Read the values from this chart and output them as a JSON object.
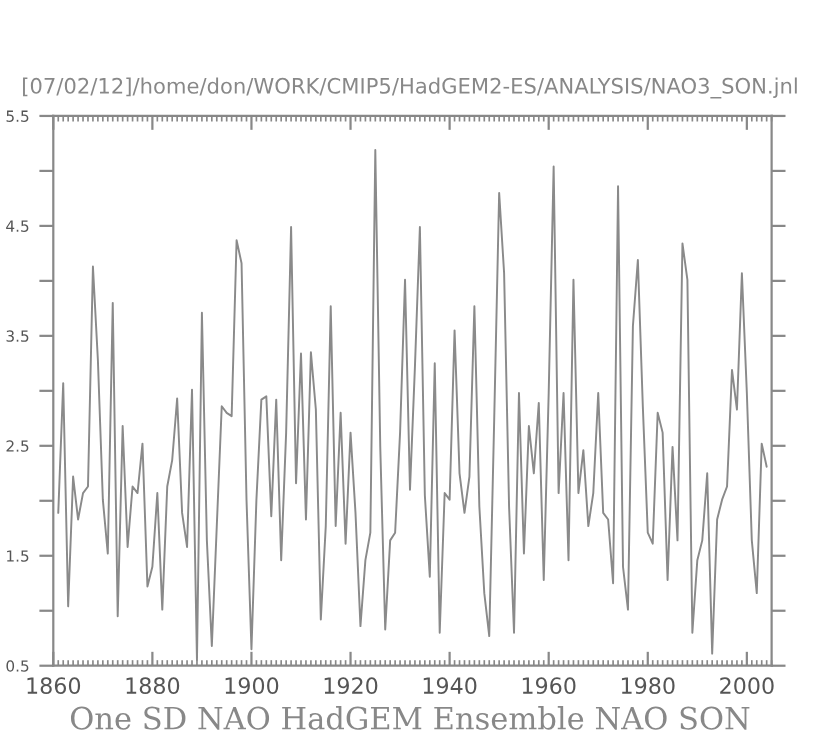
{
  "chart_data": {
    "type": "line",
    "title": "[07/02/12]/home/don/WORK/CMIP5/HadGEM2-ES/ANALYSIS/NAO3_SON.jnl",
    "xlabel": "One SD NAO HadGEM Ensemble NAO SON",
    "x": [
      1861,
      1862,
      1863,
      1864,
      1865,
      1866,
      1867,
      1868,
      1869,
      1870,
      1871,
      1872,
      1873,
      1874,
      1875,
      1876,
      1877,
      1878,
      1879,
      1880,
      1881,
      1882,
      1883,
      1884,
      1885,
      1886,
      1887,
      1888,
      1889,
      1890,
      1891,
      1892,
      1893,
      1894,
      1895,
      1896,
      1897,
      1898,
      1899,
      1900,
      1901,
      1902,
      1903,
      1904,
      1905,
      1906,
      1907,
      1908,
      1909,
      1910,
      1911,
      1912,
      1913,
      1914,
      1915,
      1916,
      1917,
      1918,
      1919,
      1920,
      1921,
      1922,
      1923,
      1924,
      1925,
      1926,
      1927,
      1928,
      1929,
      1930,
      1931,
      1932,
      1933,
      1934,
      1935,
      1936,
      1937,
      1938,
      1939,
      1940,
      1941,
      1942,
      1943,
      1944,
      1945,
      1946,
      1947,
      1948,
      1949,
      1950,
      1951,
      1952,
      1953,
      1954,
      1955,
      1956,
      1957,
      1958,
      1959,
      1960,
      1961,
      1962,
      1963,
      1964,
      1965,
      1966,
      1967,
      1968,
      1969,
      1970,
      1971,
      1972,
      1973,
      1974,
      1975,
      1976,
      1977,
      1978,
      1979,
      1980,
      1981,
      1982,
      1983,
      1984,
      1985,
      1986,
      1987,
      1988,
      1989,
      1990,
      1991,
      1992,
      1993,
      1994,
      1995,
      1996,
      1997,
      1998,
      1999,
      2000,
      2001,
      2002,
      2003,
      2004
    ],
    "series": [
      {
        "color": "#8a8a8a",
        "values": [
          1.89,
          3.07,
          1.04,
          2.22,
          1.83,
          2.07,
          2.13,
          4.13,
          3.28,
          2.01,
          1.52,
          3.8,
          0.95,
          2.68,
          1.58,
          2.13,
          2.07,
          2.52,
          1.22,
          1.4,
          2.07,
          1.01,
          2.13,
          2.37,
          2.93,
          1.89,
          1.58,
          3.01,
          0.55,
          3.71,
          1.64,
          0.68,
          1.77,
          2.86,
          2.8,
          2.77,
          4.37,
          4.16,
          2.01,
          0.65,
          2.01,
          2.92,
          2.95,
          1.86,
          2.92,
          1.46,
          2.62,
          4.49,
          2.16,
          3.34,
          1.83,
          3.35,
          2.83,
          0.92,
          1.77,
          3.77,
          1.77,
          2.8,
          1.61,
          2.62,
          1.89,
          0.86,
          1.46,
          1.71,
          5.19,
          2.49,
          0.83,
          1.64,
          1.71,
          2.62,
          4.01,
          2.1,
          3.22,
          4.49,
          2.05,
          1.31,
          3.25,
          0.8,
          2.07,
          2.01,
          3.55,
          2.25,
          1.89,
          2.22,
          3.77,
          1.95,
          1.16,
          0.77,
          2.74,
          4.8,
          4.07,
          1.95,
          0.8,
          2.98,
          1.52,
          2.68,
          2.25,
          2.89,
          1.28,
          2.98,
          5.04,
          2.07,
          2.98,
          1.46,
          4.01,
          2.07,
          2.46,
          1.77,
          2.07,
          2.98,
          1.89,
          1.83,
          1.25,
          4.86,
          1.4,
          1.01,
          3.59,
          4.19,
          2.86,
          1.71,
          1.61,
          2.8,
          2.62,
          1.28,
          2.49,
          1.64,
          4.34,
          4.01,
          0.8,
          1.46,
          1.64,
          2.25,
          0.61,
          1.83,
          2.01,
          2.13,
          3.19,
          2.83,
          4.07,
          2.98,
          1.64,
          1.16,
          2.52,
          2.31
        ]
      }
    ],
    "xlim": [
      1860,
      2005
    ],
    "xticks": [
      1860,
      1880,
      1900,
      1920,
      1940,
      1960,
      1980,
      2000
    ],
    "ylim": [
      0.5,
      5.5
    ],
    "yticks": [
      0.5,
      {
        "value": 1,
        "label": null
      },
      1.5,
      {
        "value": 2,
        "label": null
      },
      2.5,
      {
        "value": 3,
        "label": null
      },
      3.5,
      {
        "value": 4,
        "label": null
      },
      4.5,
      {
        "value": 5,
        "label": null
      },
      5.5
    ],
    "line_style": "solid",
    "grid": false,
    "legend": false
  }
}
